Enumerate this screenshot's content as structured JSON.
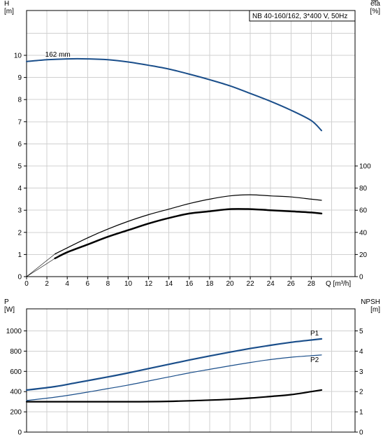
{
  "chart_data": [
    {
      "type": "line",
      "title": "NB 40-160/162, 3*400 V, 50Hz",
      "xlabel": "Q [m³/h]",
      "ylabel": "H\n[m]",
      "y2label": "eta\n[%]",
      "xlim": [
        0,
        30
      ],
      "ylim": [
        0,
        12
      ],
      "y2lim": [
        0,
        120
      ],
      "grid": true,
      "x_ticks": [
        0,
        2,
        4,
        6,
        8,
        10,
        12,
        14,
        16,
        18,
        20,
        22,
        24,
        26,
        28
      ],
      "y_ticks": [
        0,
        1,
        2,
        3,
        4,
        5,
        6,
        7,
        8,
        9,
        10
      ],
      "y2_ticks": [
        0,
        20,
        40,
        60,
        80,
        100
      ],
      "annotations": [
        {
          "text": "162 mm",
          "x": 3.0,
          "y": 10.0
        }
      ],
      "series": [
        {
          "color": "#1a4e8a",
          "axis": "left",
          "points": [
            [
              0,
              9.72
            ],
            [
              2,
              9.8
            ],
            [
              4,
              9.84
            ],
            [
              6,
              9.84
            ],
            [
              8,
              9.8
            ],
            [
              10,
              9.7
            ],
            [
              12,
              9.55
            ],
            [
              14,
              9.38
            ],
            [
              16,
              9.15
            ],
            [
              18,
              8.9
            ],
            [
              20,
              8.62
            ],
            [
              22,
              8.28
            ],
            [
              24,
              7.92
            ],
            [
              26,
              7.52
            ],
            [
              28,
              7.05
            ],
            [
              29,
              6.6
            ]
          ]
        },
        {
          "color": "#000000",
          "axis": "right",
          "points": [
            [
              2.8,
              20.5
            ],
            [
              4,
              26
            ],
            [
              6,
              35
            ],
            [
              8,
              43
            ],
            [
              10,
              50
            ],
            [
              12,
              56
            ],
            [
              14,
              61
            ],
            [
              16,
              66
            ],
            [
              18,
              70
            ],
            [
              20,
              73
            ],
            [
              22,
              74
            ],
            [
              24,
              73
            ],
            [
              26,
              72
            ],
            [
              28,
              70
            ],
            [
              29,
              69
            ]
          ]
        },
        {
          "color": "#000000",
          "axis": "right",
          "points": [
            [
              2.8,
              16.5
            ],
            [
              4,
              22
            ],
            [
              6,
              29
            ],
            [
              8,
              36
            ],
            [
              10,
              42
            ],
            [
              12,
              48
            ],
            [
              14,
              53
            ],
            [
              16,
              57
            ],
            [
              18,
              59
            ],
            [
              20,
              61
            ],
            [
              22,
              61
            ],
            [
              24,
              60
            ],
            [
              26,
              59
            ],
            [
              28,
              58
            ],
            [
              29,
              57
            ]
          ]
        }
      ]
    },
    {
      "type": "line",
      "xlabel": "",
      "ylabel": "P\n[W]",
      "y2label": "NPSH\n[m]",
      "xlim": [
        0,
        30
      ],
      "ylim": [
        0,
        1200
      ],
      "y2lim": [
        0,
        6
      ],
      "grid": true,
      "y_ticks": [
        0,
        200,
        400,
        600,
        800,
        1000
      ],
      "y2_ticks": [
        0,
        1,
        2,
        3,
        4,
        5
      ],
      "series": [
        {
          "name": "P1",
          "color": "#1a4e8a",
          "axis": "left",
          "points": [
            [
              0,
              415
            ],
            [
              2.8,
              450
            ],
            [
              5,
              490
            ],
            [
              8,
              545
            ],
            [
              10,
              585
            ],
            [
              12,
              628
            ],
            [
              14,
              670
            ],
            [
              16,
              712
            ],
            [
              18,
              752
            ],
            [
              20,
              790
            ],
            [
              22,
              826
            ],
            [
              24,
              858
            ],
            [
              26,
              887
            ],
            [
              28,
              910
            ],
            [
              29,
              921
            ]
          ]
        },
        {
          "name": "P2",
          "color": "#1a4e8a",
          "axis": "left",
          "points": [
            [
              0,
              312
            ],
            [
              2.8,
              345
            ],
            [
              5,
              378
            ],
            [
              8,
              430
            ],
            [
              10,
              465
            ],
            [
              12,
              505
            ],
            [
              14,
              545
            ],
            [
              16,
              585
            ],
            [
              18,
              620
            ],
            [
              20,
              655
            ],
            [
              22,
              688
            ],
            [
              24,
              717
            ],
            [
              26,
              740
            ],
            [
              28,
              755
            ],
            [
              29,
              762
            ]
          ]
        },
        {
          "color": "#000000",
          "axis": "right",
          "points": [
            [
              0,
              1.5
            ],
            [
              2.8,
              1.5
            ],
            [
              6,
              1.5
            ],
            [
              10,
              1.5
            ],
            [
              14,
              1.52
            ],
            [
              18,
              1.58
            ],
            [
              20,
              1.62
            ],
            [
              22,
              1.68
            ],
            [
              24,
              1.76
            ],
            [
              26,
              1.85
            ],
            [
              28,
              2.0
            ],
            [
              29,
              2.08
            ]
          ]
        }
      ]
    }
  ]
}
